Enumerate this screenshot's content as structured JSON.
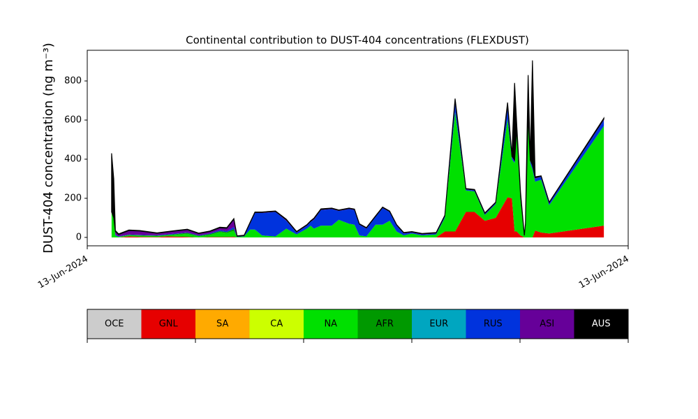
{
  "chart_data": {
    "type": "stacked_area",
    "title": "Continental contribution to DUST-404 concentrations (FLEXDUST)",
    "y_label": "DUST-404 concentration (ng m⁻³)",
    "xlim": [
      0,
      100
    ],
    "xticks": [
      {
        "value": 0,
        "label": "13-Jun-2024"
      },
      {
        "value": 100,
        "label": "13-Jun-2024"
      }
    ],
    "ylim": [
      -43,
      957
    ],
    "yticks": [
      0,
      200,
      400,
      600,
      800
    ],
    "x": [
      4.5,
      4.9,
      5.2,
      5.8,
      7.7,
      9.7,
      12.9,
      14.8,
      18.5,
      20.6,
      22.6,
      24.5,
      25.8,
      27.1,
      27.7,
      29.0,
      30.1,
      31.0,
      32.3,
      34.8,
      36.8,
      38.7,
      40.6,
      41.3,
      41.9,
      43.2,
      45.2,
      46.5,
      48.4,
      49.4,
      50.3,
      51.6,
      53.3,
      54.6,
      55.9,
      57.2,
      58.5,
      60.0,
      61.9,
      64.5,
      66.1,
      68.0,
      70.0,
      71.6,
      73.5,
      75.5,
      77.7,
      78.5,
      79.0,
      79.4,
      80.1,
      80.8,
      81.0,
      81.5,
      81.9,
      82.3,
      82.8,
      83.9,
      85.4,
      95.5
    ],
    "series": [
      {
        "name": "OCE",
        "color": "#cccccc",
        "values": [
          0,
          0,
          0,
          0,
          0,
          0,
          0,
          0,
          0,
          0,
          0,
          0,
          0,
          0,
          0,
          0,
          0,
          0,
          0,
          0,
          0,
          0,
          0,
          0,
          0,
          0,
          0,
          0,
          0,
          0,
          0,
          0,
          0,
          0,
          0,
          0,
          0,
          0,
          0,
          0,
          0,
          0,
          0,
          0,
          0,
          0,
          0,
          0,
          0,
          0,
          0,
          0,
          0,
          0,
          0,
          0,
          0,
          0,
          0,
          0
        ]
      },
      {
        "name": "GNL",
        "color": "#e60000",
        "values": [
          0,
          0,
          0,
          0,
          5,
          3,
          2,
          5,
          3,
          0,
          2,
          2,
          2,
          3,
          0,
          0,
          0,
          0,
          0,
          0,
          0,
          0,
          0,
          0,
          0,
          0,
          0,
          0,
          0,
          0,
          0,
          0,
          0,
          0,
          0,
          0,
          0,
          0,
          0,
          0,
          30,
          30,
          130,
          130,
          85,
          100,
          205,
          200,
          30,
          30,
          10,
          0,
          0,
          0,
          0,
          0,
          35,
          25,
          20,
          60
        ]
      },
      {
        "name": "SA",
        "color": "#ffaa00",
        "values": [
          0,
          0,
          0,
          0,
          0,
          0,
          0,
          0,
          0,
          0,
          0,
          0,
          0,
          0,
          0,
          0,
          0,
          0,
          0,
          0,
          0,
          0,
          0,
          0,
          0,
          0,
          0,
          0,
          0,
          0,
          0,
          0,
          0,
          0,
          0,
          0,
          0,
          0,
          0,
          0,
          0,
          0,
          0,
          0,
          0,
          0,
          0,
          0,
          0,
          0,
          0,
          0,
          0,
          0,
          0,
          0,
          0,
          0,
          0,
          0
        ]
      },
      {
        "name": "CA",
        "color": "#ccff00",
        "values": [
          0,
          0,
          0,
          0,
          0,
          0,
          0,
          0,
          0,
          0,
          0,
          0,
          0,
          0,
          0,
          0,
          0,
          0,
          0,
          0,
          0,
          0,
          0,
          0,
          0,
          0,
          0,
          0,
          0,
          0,
          0,
          0,
          0,
          0,
          0,
          0,
          0,
          0,
          0,
          0,
          0,
          0,
          0,
          0,
          0,
          0,
          0,
          0,
          0,
          0,
          0,
          0,
          0,
          0,
          0,
          0,
          0,
          0,
          0,
          0
        ]
      },
      {
        "name": "NA",
        "color": "#00e000",
        "values": [
          130,
          100,
          10,
          3,
          5,
          5,
          5,
          5,
          15,
          5,
          10,
          25,
          20,
          30,
          2,
          5,
          40,
          40,
          10,
          5,
          45,
          15,
          45,
          60,
          45,
          60,
          60,
          90,
          70,
          65,
          10,
          5,
          65,
          65,
          85,
          30,
          10,
          20,
          10,
          15,
          70,
          610,
          110,
          105,
          30,
          70,
          400,
          200,
          350,
          500,
          180,
          5,
          60,
          600,
          380,
          350,
          250,
          270,
          145,
          510
        ]
      },
      {
        "name": "AFR",
        "color": "#009900",
        "values": [
          0,
          0,
          0,
          0,
          3,
          3,
          2,
          3,
          5,
          3,
          5,
          5,
          5,
          10,
          0,
          0,
          0,
          0,
          0,
          0,
          0,
          0,
          0,
          0,
          0,
          0,
          0,
          0,
          0,
          0,
          0,
          0,
          0,
          0,
          0,
          0,
          0,
          0,
          0,
          0,
          0,
          0,
          0,
          0,
          0,
          0,
          0,
          0,
          0,
          0,
          0,
          0,
          0,
          0,
          0,
          0,
          0,
          0,
          0,
          0
        ]
      },
      {
        "name": "EUR",
        "color": "#00a6c0",
        "values": [
          0,
          0,
          0,
          0,
          0,
          0,
          0,
          0,
          0,
          0,
          0,
          0,
          0,
          0,
          0,
          0,
          0,
          0,
          0,
          0,
          0,
          0,
          0,
          0,
          0,
          0,
          0,
          0,
          0,
          0,
          0,
          0,
          0,
          0,
          0,
          0,
          0,
          0,
          0,
          0,
          0,
          0,
          0,
          0,
          0,
          0,
          0,
          0,
          0,
          0,
          0,
          0,
          0,
          0,
          0,
          0,
          0,
          0,
          0,
          0
        ]
      },
      {
        "name": "RUS",
        "color": "#0033dd",
        "values": [
          0,
          0,
          5,
          2,
          2,
          2,
          2,
          3,
          2,
          2,
          3,
          5,
          5,
          10,
          2,
          2,
          30,
          85,
          115,
          125,
          40,
          10,
          15,
          20,
          45,
          80,
          85,
          45,
          75,
          75,
          55,
          40,
          40,
          85,
          45,
          30,
          10,
          5,
          5,
          5,
          8,
          55,
          5,
          5,
          5,
          5,
          60,
          10,
          10,
          20,
          20,
          3,
          5,
          20,
          10,
          15,
          15,
          15,
          10,
          30
        ]
      },
      {
        "name": "ASI",
        "color": "#660099",
        "values": [
          0,
          0,
          15,
          10,
          20,
          20,
          10,
          12,
          15,
          10,
          10,
          12,
          15,
          40,
          2,
          2,
          5,
          3,
          3,
          3,
          5,
          3,
          3,
          3,
          5,
          3,
          3,
          3,
          3,
          3,
          3,
          3,
          3,
          3,
          3,
          3,
          3,
          3,
          3,
          3,
          3,
          5,
          3,
          3,
          3,
          3,
          10,
          5,
          5,
          5,
          5,
          2,
          2,
          5,
          5,
          5,
          5,
          3,
          3,
          5
        ]
      },
      {
        "name": "AUS",
        "color": "#000000",
        "values": [
          300,
          200,
          5,
          3,
          3,
          2,
          2,
          2,
          2,
          2,
          2,
          3,
          3,
          3,
          2,
          2,
          2,
          2,
          2,
          2,
          3,
          2,
          2,
          2,
          3,
          3,
          2,
          2,
          2,
          2,
          2,
          2,
          2,
          2,
          2,
          2,
          2,
          2,
          2,
          2,
          2,
          10,
          2,
          2,
          2,
          2,
          15,
          5,
          395,
          20,
          15,
          2,
          3,
          205,
          5,
          535,
          5,
          2,
          2,
          5
        ]
      }
    ]
  }
}
